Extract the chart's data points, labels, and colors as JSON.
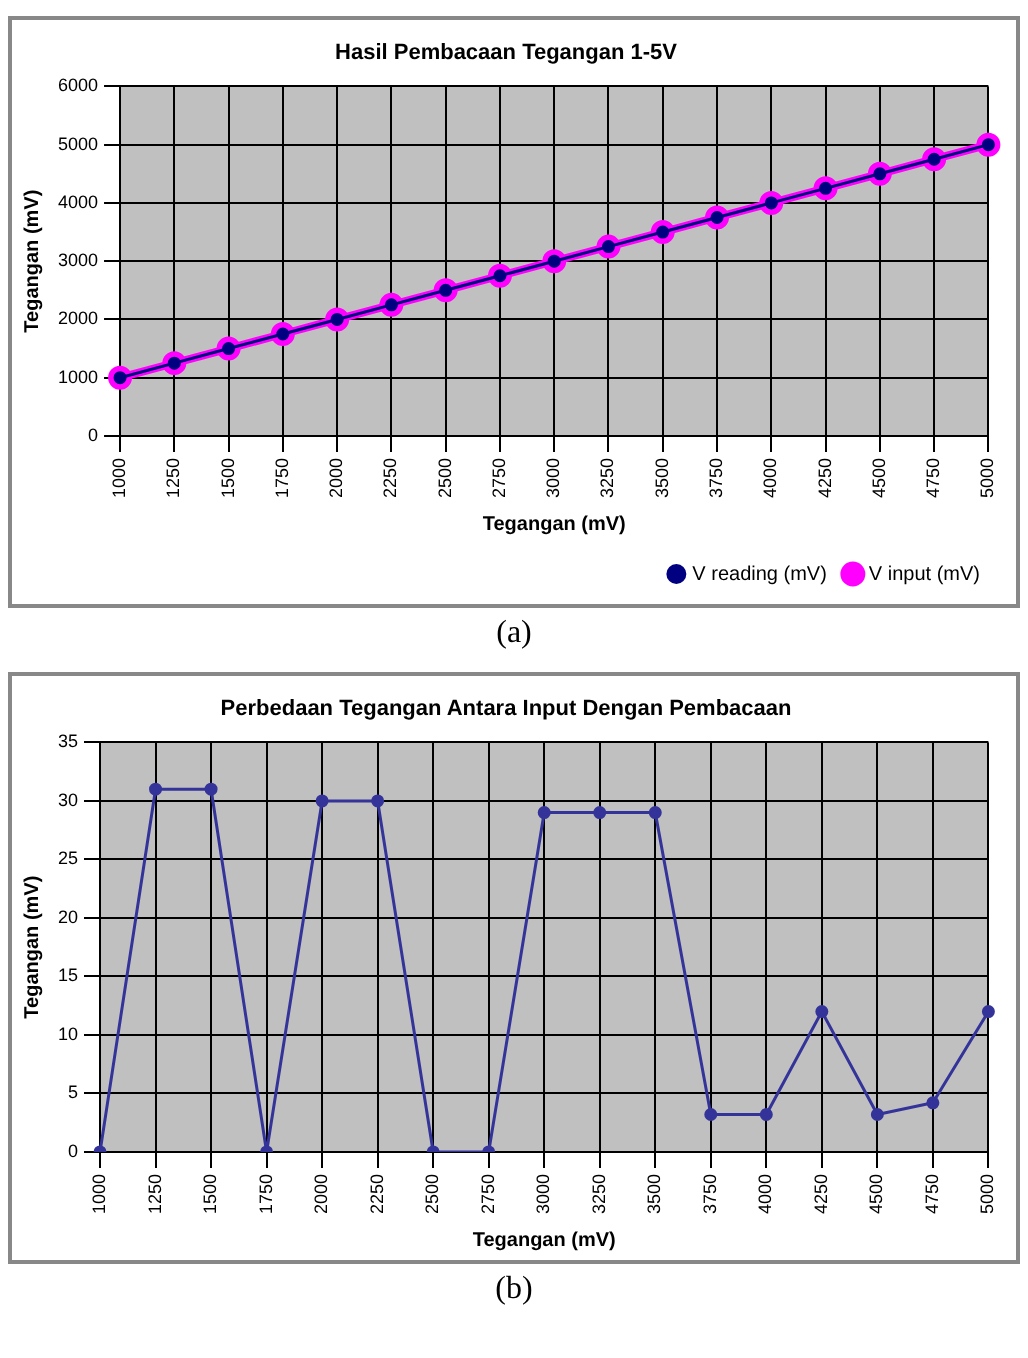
{
  "chart_data": [
    {
      "type": "line",
      "title": "Hasil Pembacaan Tegangan 1-5V",
      "xlabel": "Tegangan (mV)",
      "ylabel": "Tegangan (mV)",
      "categories": [
        "1000",
        "1250",
        "1500",
        "1750",
        "2000",
        "2250",
        "2500",
        "2750",
        "3000",
        "3250",
        "3500",
        "3750",
        "4000",
        "4250",
        "4500",
        "4750",
        "5000"
      ],
      "series": [
        {
          "name": "V input (mV)",
          "color": "#ff00ff",
          "values": [
            1000,
            1250,
            1500,
            1750,
            2000,
            2250,
            2500,
            2750,
            3000,
            3250,
            3500,
            3750,
            4000,
            4250,
            4500,
            4750,
            5000
          ]
        },
        {
          "name": "V reading (mV)",
          "color": "#000080",
          "values": [
            1000,
            1250,
            1500,
            1750,
            2000,
            2250,
            2500,
            2750,
            3000,
            3250,
            3500,
            3750,
            4000,
            4250,
            4500,
            4750,
            5000
          ]
        }
      ],
      "ylim": [
        0,
        6000
      ],
      "yticks": [
        0,
        1000,
        2000,
        3000,
        4000,
        5000,
        6000
      ],
      "grid": true,
      "legend": "bottom right",
      "marker": "circle",
      "annotations": [
        "(a)"
      ]
    },
    {
      "type": "line",
      "title": "Perbedaan Tegangan Antara Input Dengan Pembacaan",
      "xlabel": "Tegangan (mV)",
      "ylabel": "Tegangan (mV)",
      "categories": [
        "1000",
        "1250",
        "1500",
        "1750",
        "2000",
        "2250",
        "2500",
        "2750",
        "3000",
        "3250",
        "3500",
        "3750",
        "4000",
        "4250",
        "4500",
        "4750",
        "5000"
      ],
      "series": [
        {
          "color": "#333399",
          "values": [
            0,
            31,
            31,
            0,
            30,
            30,
            0,
            0,
            29,
            29,
            29,
            3.2,
            3.2,
            12,
            3.2,
            4.2,
            12
          ]
        }
      ],
      "ylim": [
        0,
        35
      ],
      "yticks": [
        0,
        5,
        10,
        15,
        20,
        25,
        30,
        35
      ],
      "grid": true,
      "legend": false,
      "marker": "circle",
      "annotations": [
        "(b)"
      ]
    }
  ]
}
